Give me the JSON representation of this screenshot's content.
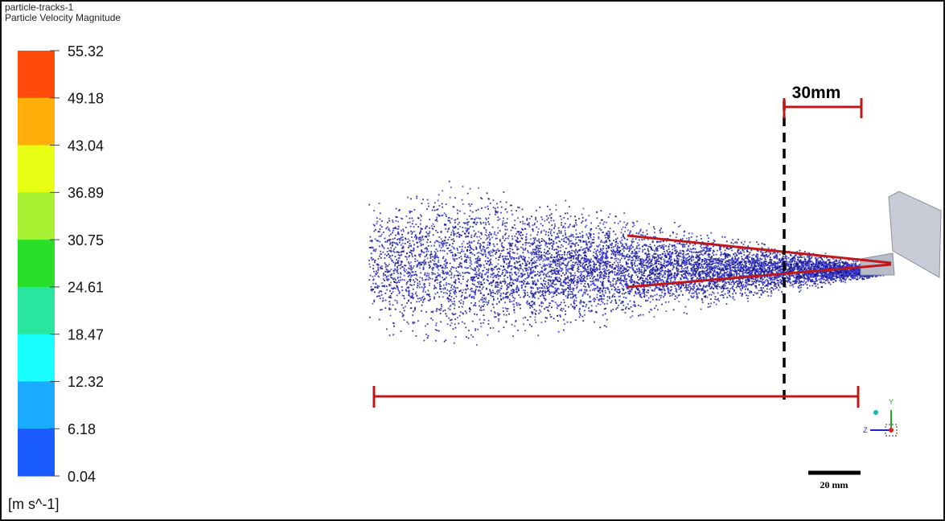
{
  "header": {
    "title": "particle-tracks-1",
    "variable": "Particle Velocity Magnitude"
  },
  "legend": {
    "labels": [
      "55.32",
      "49.18",
      "43.04",
      "36.89",
      "30.75",
      "24.61",
      "18.47",
      "12.32",
      "6.18",
      "0.04"
    ],
    "colors": [
      "#ff4a0a",
      "#ffae0a",
      "#e6ff12",
      "#a8f032",
      "#28e028",
      "#28e6a0",
      "#18ffff",
      "#1aaaff",
      "#1a5cff"
    ],
    "unit": "[m s^-1]"
  },
  "annotations": {
    "top_distance": "30mm",
    "scale_bar": "20 mm",
    "axis_y": "Y",
    "axis_z": "Z"
  }
}
